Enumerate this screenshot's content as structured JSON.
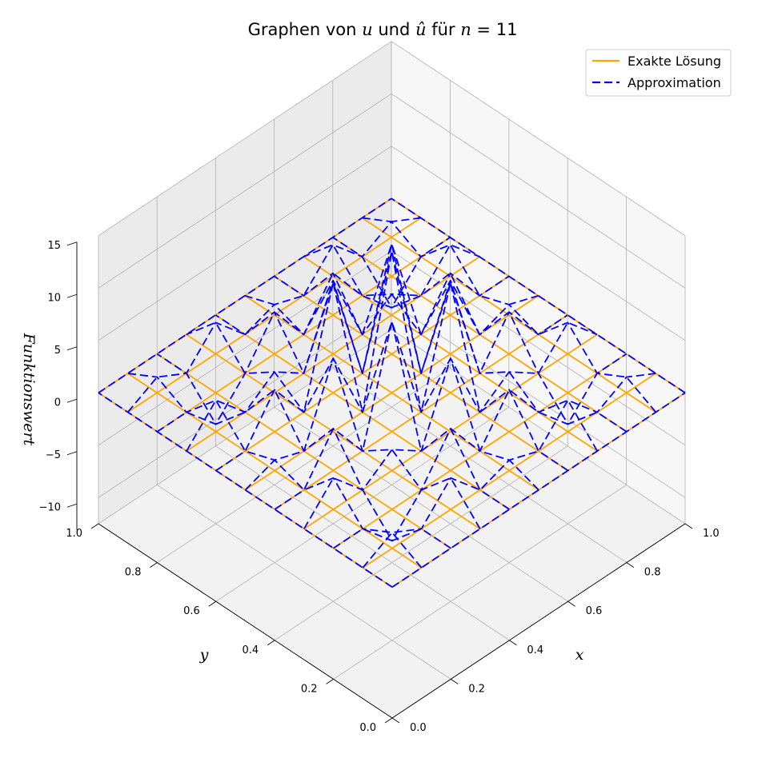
{
  "chart_data": {
    "type": "surface3d-wireframe",
    "title_parts": {
      "prefix": "Graphen von ",
      "var_u": "u",
      "mid": " und ",
      "var_uhat": "û",
      "for": " für ",
      "var_n": "n",
      "eq": " = ",
      "n_value": "11"
    },
    "xlabel": "x",
    "ylabel": "y",
    "zlabel": "Funktionswert",
    "x_ticks": [
      "0.0",
      "0.2",
      "0.4",
      "0.6",
      "0.8",
      "1.0"
    ],
    "y_ticks": [
      "0.0",
      "0.2",
      "0.4",
      "0.6",
      "0.8",
      "1.0"
    ],
    "z_ticks": [
      "−10",
      "−5",
      "0",
      "5",
      "10",
      "15"
    ],
    "xlim": [
      0,
      1
    ],
    "ylim": [
      0,
      1
    ],
    "zlim": [
      -12.5,
      15
    ],
    "grid": true,
    "legend_position": "top-right",
    "n": 11,
    "series": [
      {
        "name": "Exakte Lösung",
        "color": "#ffa500",
        "linestyle": "solid",
        "z_values": "all 0 (exact solution is zero on the grid)"
      },
      {
        "name": "Approximation",
        "color": "#0000ff",
        "linestyle": "dashed",
        "peak_value": 13.5
      }
    ],
    "exact_z_value": 0,
    "approx_grid_size": 11,
    "approx_z": [
      [
        0,
        0,
        0,
        0,
        0,
        0,
        0,
        0,
        0,
        0,
        0
      ],
      [
        0,
        1.5,
        0,
        3,
        0,
        1,
        0,
        3,
        0,
        1.5,
        0
      ],
      [
        0,
        0,
        -3,
        0,
        4,
        0,
        4,
        0,
        -3,
        0,
        0
      ],
      [
        0,
        3,
        0,
        2,
        0,
        7,
        0,
        2,
        0,
        3,
        0
      ],
      [
        0,
        0,
        4,
        0,
        10.5,
        0,
        10.5,
        0,
        4,
        0,
        0
      ],
      [
        0,
        1,
        0,
        7,
        0,
        13.5,
        0,
        7,
        0,
        1,
        0
      ],
      [
        0,
        0,
        4,
        0,
        10.5,
        0,
        10.5,
        0,
        4,
        0,
        0
      ],
      [
        0,
        3,
        0,
        2,
        0,
        7,
        0,
        2,
        0,
        3,
        0
      ],
      [
        0,
        0,
        -3,
        0,
        4,
        0,
        4,
        0,
        -3,
        0,
        0
      ],
      [
        0,
        1.5,
        0,
        3,
        0,
        1,
        0,
        3,
        0,
        1.5,
        0
      ],
      [
        0,
        0,
        0,
        0,
        0,
        0,
        0,
        0,
        0,
        0,
        0
      ]
    ]
  }
}
